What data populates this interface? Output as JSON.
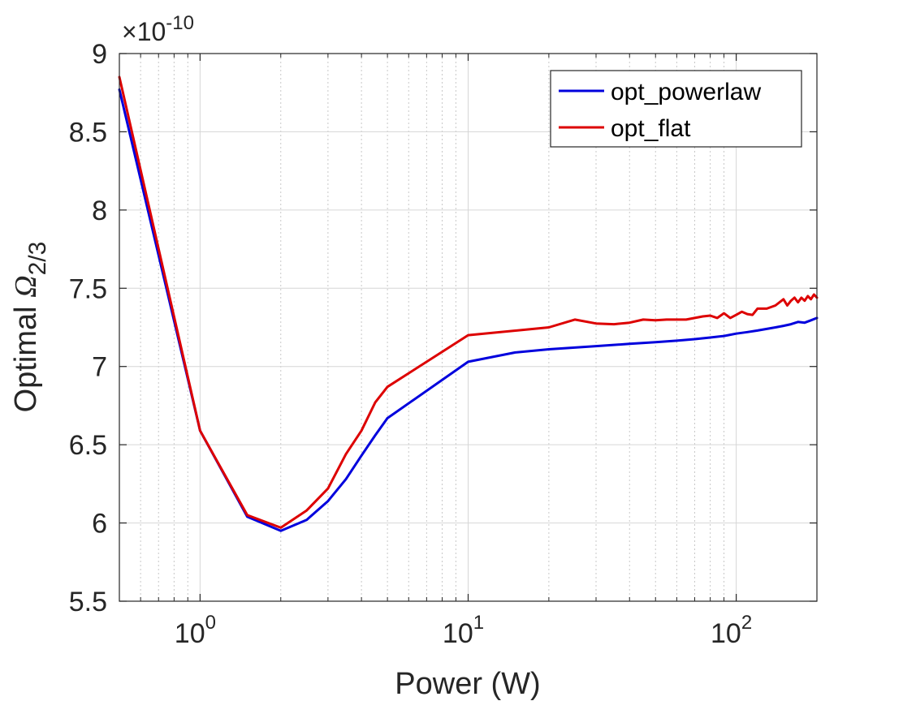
{
  "chart_data": {
    "type": "line",
    "xscale": "log",
    "xlabel": "Power (W)",
    "ylabel": {
      "prefix": "Optimal ",
      "symbol": "Ω",
      "subscript": "2/3"
    },
    "y_exponent": {
      "prefix": "×10",
      "power": "-10"
    },
    "xlim": [
      0.5,
      200
    ],
    "ylim": [
      5.5,
      9.0
    ],
    "x_ticks": [
      {
        "value": 1,
        "base": "10",
        "exp": "0"
      },
      {
        "value": 10,
        "base": "10",
        "exp": "1"
      },
      {
        "value": 100,
        "base": "10",
        "exp": "2"
      }
    ],
    "y_ticks": [
      {
        "value": 5.5,
        "label": "5.5"
      },
      {
        "value": 6.0,
        "label": "6"
      },
      {
        "value": 6.5,
        "label": "6.5"
      },
      {
        "value": 7.0,
        "label": "7"
      },
      {
        "value": 7.5,
        "label": "7.5"
      },
      {
        "value": 8.0,
        "label": "8"
      },
      {
        "value": 8.5,
        "label": "8.5"
      },
      {
        "value": 9.0,
        "label": "9"
      }
    ],
    "grid": true,
    "legend_position": "top-right",
    "series": [
      {
        "name": "opt_powerlaw",
        "color": "#0000dd",
        "x": [
          0.5,
          1,
          1.5,
          2,
          2.5,
          3,
          3.5,
          4,
          4.5,
          5,
          10,
          15,
          20,
          30,
          40,
          50,
          60,
          70,
          80,
          90,
          100,
          110,
          120,
          130,
          140,
          150,
          160,
          170,
          180,
          190,
          200
        ],
        "y": [
          8.77,
          6.59,
          6.04,
          5.95,
          6.02,
          6.14,
          6.28,
          6.43,
          6.56,
          6.67,
          7.03,
          7.09,
          7.11,
          7.13,
          7.145,
          7.155,
          7.165,
          7.175,
          7.185,
          7.195,
          7.21,
          7.22,
          7.23,
          7.24,
          7.25,
          7.26,
          7.27,
          7.285,
          7.28,
          7.295,
          7.31
        ]
      },
      {
        "name": "opt_flat",
        "color": "#dd0000",
        "x": [
          0.5,
          1,
          1.5,
          2,
          2.5,
          3,
          3.5,
          4,
          4.5,
          5,
          10,
          20,
          25,
          30,
          35,
          40,
          45,
          50,
          55,
          60,
          65,
          70,
          75,
          80,
          85,
          90,
          95,
          100,
          105,
          110,
          115,
          120,
          130,
          140,
          150,
          155,
          160,
          165,
          170,
          175,
          180,
          185,
          190,
          195,
          200
        ],
        "y": [
          8.85,
          6.59,
          6.05,
          5.97,
          6.08,
          6.22,
          6.44,
          6.59,
          6.77,
          6.87,
          7.2,
          7.25,
          7.3,
          7.275,
          7.27,
          7.28,
          7.3,
          7.295,
          7.3,
          7.3,
          7.3,
          7.31,
          7.32,
          7.325,
          7.31,
          7.34,
          7.31,
          7.33,
          7.35,
          7.335,
          7.33,
          7.37,
          7.37,
          7.39,
          7.43,
          7.39,
          7.42,
          7.44,
          7.41,
          7.44,
          7.42,
          7.45,
          7.43,
          7.46,
          7.44
        ]
      }
    ]
  }
}
